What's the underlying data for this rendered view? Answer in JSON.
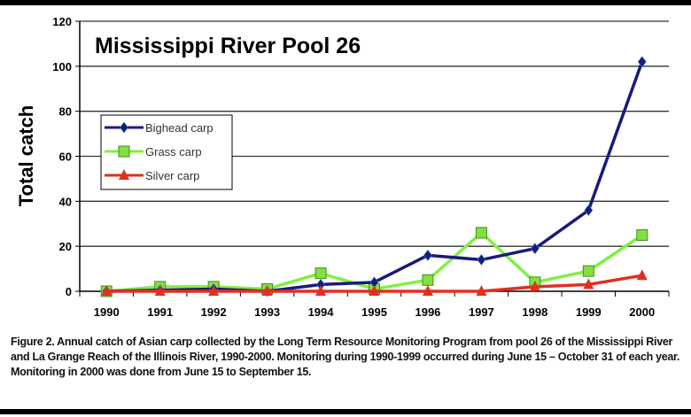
{
  "chart_data": {
    "type": "line",
    "title": "Mississippi River Pool 26",
    "xlabel": "",
    "ylabel": "Total catch",
    "categories": [
      "1990",
      "1991",
      "1992",
      "1993",
      "1994",
      "1995",
      "1996",
      "1997",
      "1998",
      "1999",
      "2000"
    ],
    "ylim": [
      0,
      120
    ],
    "yticks": [
      0,
      20,
      40,
      60,
      80,
      100,
      120
    ],
    "grid": true,
    "legend_position": "upper-left",
    "series": [
      {
        "name": "Bighead carp",
        "color": "#1a1a7a",
        "marker": "diamond",
        "values": [
          0,
          0.5,
          1,
          0,
          3,
          4,
          16,
          14,
          19,
          36,
          102
        ]
      },
      {
        "name": "Grass carp",
        "color": "#80f040",
        "marker": "square",
        "values": [
          0,
          2,
          2,
          1,
          8,
          1,
          5,
          26,
          4,
          9,
          25
        ]
      },
      {
        "name": "Silver carp",
        "color": "#e03020",
        "marker": "triangle",
        "values": [
          0,
          0,
          0,
          0,
          0,
          0,
          0,
          0,
          2,
          3,
          7
        ]
      }
    ]
  },
  "caption": "Figure 2.  Annual catch of Asian carp collected by the Long Term Resource Monitoring Program from pool 26 of the Mississippi River and La Grange Reach of the Illinois River, 1990-2000.  Monitoring during 1990-1999 occurred during June 15 – October 31 of each year.  Monitoring in 2000 was done from June 15  to September 15."
}
